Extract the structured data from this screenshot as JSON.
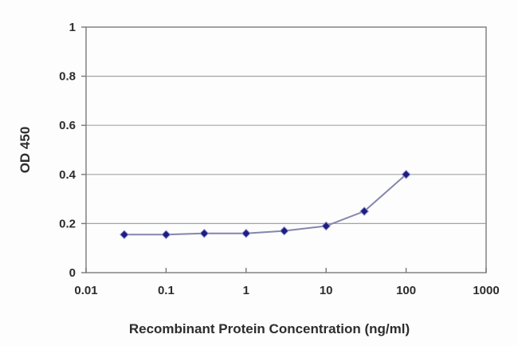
{
  "chart_data": {
    "type": "line",
    "title": "",
    "xlabel": "Recombinant Protein Concentration (ng/ml)",
    "ylabel": "OD 450",
    "x_scale": "log",
    "xlim": [
      0.01,
      1000
    ],
    "ylim": [
      0,
      1
    ],
    "grid": "horizontal",
    "legend": "none",
    "x_ticks": [
      {
        "value": 0.01,
        "label": "0.01"
      },
      {
        "value": 0.1,
        "label": "0.1"
      },
      {
        "value": 1,
        "label": "1"
      },
      {
        "value": 10,
        "label": "10"
      },
      {
        "value": 100,
        "label": "100"
      },
      {
        "value": 1000,
        "label": "1000"
      }
    ],
    "y_ticks": [
      {
        "value": 0,
        "label": "0"
      },
      {
        "value": 0.2,
        "label": "0.2"
      },
      {
        "value": 0.4,
        "label": "0.4"
      },
      {
        "value": 0.6,
        "label": "0.6"
      },
      {
        "value": 0.8,
        "label": "0.8"
      },
      {
        "value": 1,
        "label": "1"
      }
    ],
    "series": [
      {
        "name": "OD 450",
        "x": [
          0.03,
          0.1,
          0.3,
          1,
          3,
          10,
          30,
          100
        ],
        "y": [
          0.155,
          0.155,
          0.16,
          0.16,
          0.17,
          0.19,
          0.25,
          0.4
        ],
        "marker": "diamond",
        "line_color": "#8585ad",
        "marker_color": "#1d1d82",
        "marker_halo_color": "#9a9ad0"
      }
    ],
    "colors": {
      "background": "#fdfdfd",
      "plot_border": "#8a8a8a",
      "gridline": "#a3a3a3",
      "tick": "#777777",
      "text": "#2d2d2d"
    }
  }
}
